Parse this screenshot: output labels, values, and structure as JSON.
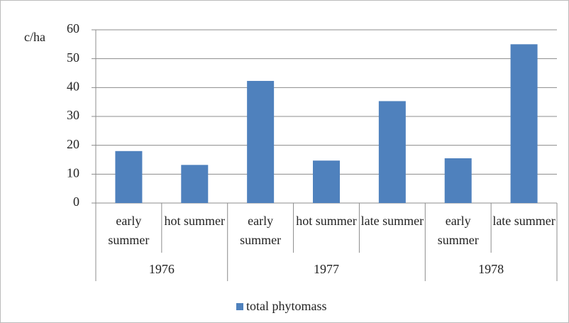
{
  "chart_data": {
    "type": "bar",
    "y_label": "c/ha",
    "groups": [
      {
        "name": "1976",
        "categories": [
          "early summer",
          "hot summer"
        ]
      },
      {
        "name": "1977",
        "categories": [
          "early summer",
          "hot summer",
          "late summer"
        ]
      },
      {
        "name": "1978",
        "categories": [
          "early summer",
          "late summer"
        ]
      }
    ],
    "series": [
      {
        "name": "total phytomass",
        "color": "#4f81bd",
        "values": [
          18,
          13.2,
          42.3,
          14.7,
          35.3,
          15.5,
          55
        ]
      }
    ],
    "ylim": [
      0,
      60
    ],
    "yticks": [
      0,
      10,
      20,
      30,
      40,
      50,
      60
    ],
    "grid": true,
    "legend": "bottom"
  }
}
